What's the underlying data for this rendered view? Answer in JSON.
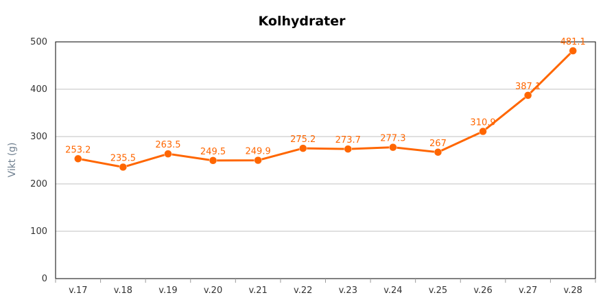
{
  "chart_data": {
    "type": "line",
    "title": "Kolhydrater",
    "xlabel": "",
    "ylabel": "Vikt (g)",
    "categories": [
      "v.17",
      "v.18",
      "v.19",
      "v.20",
      "v.21",
      "v.22",
      "v.23",
      "v.24",
      "v.25",
      "v.26",
      "v.27",
      "v.28"
    ],
    "series": [
      {
        "values": [
          253.2,
          235.5,
          263.5,
          249.5,
          249.9,
          275.2,
          273.7,
          277.3,
          267,
          310.9,
          387.1,
          481.1
        ],
        "data_labels": [
          "253.2",
          "235.5",
          "263.5",
          "249.5",
          "249.9",
          "275.2",
          "273.7",
          "277.3",
          "267",
          "310.9",
          "387.1",
          "481.1"
        ]
      }
    ],
    "ylim": [
      0,
      500
    ],
    "yticks": [
      "0",
      "100",
      "200",
      "300",
      "400",
      "500"
    ],
    "grid": "horizontal",
    "legend": "none",
    "colors": {
      "series": "#ff6600",
      "grid": "#c0c0c0",
      "axis": "#000000"
    }
  }
}
